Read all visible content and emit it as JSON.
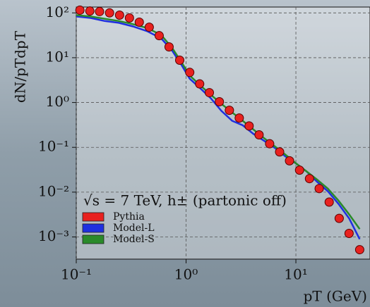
{
  "chart_data": {
    "type": "line",
    "x_label": "pT (GeV)",
    "y_label": "dN/pTdpT",
    "annotation": "√s = 7 TeV, h± (partonic off)",
    "log_x": true,
    "log_y": true,
    "grid": true,
    "legend": "lower left",
    "xlim": [
      0.1,
      47.3
    ],
    "ylim": [
      0.00032,
      135
    ],
    "xticks": [
      {
        "value": 0.1,
        "label": "10⁻¹"
      },
      {
        "value": 1,
        "label": "10⁰"
      },
      {
        "value": 10,
        "label": "10¹"
      }
    ],
    "yticks": [
      {
        "value": 0.001,
        "label": "10⁻³"
      },
      {
        "value": 0.01,
        "label": "10⁻²"
      },
      {
        "value": 0.1,
        "label": "10⁻¹"
      },
      {
        "value": 1,
        "label": "10⁰"
      },
      {
        "value": 10,
        "label": "10¹"
      },
      {
        "value": 100,
        "label": "10²"
      }
    ],
    "series": [
      {
        "name": "Pythia",
        "color": "#e8211f",
        "style": "markers",
        "x": [
          0.108,
          0.133,
          0.163,
          0.201,
          0.248,
          0.305,
          0.375,
          0.462,
          0.569,
          0.7,
          0.875,
          1.08,
          1.33,
          1.63,
          2.01,
          2.48,
          3.05,
          3.75,
          4.62,
          5.77,
          7.11,
          8.75,
          10.8,
          13.3,
          16.3,
          20.1,
          24.8,
          30.5,
          38.1
        ],
        "values": [
          115,
          110,
          107,
          100,
          89,
          77,
          62,
          48,
          31,
          17.4,
          8.8,
          4.7,
          2.6,
          1.66,
          1.04,
          0.67,
          0.45,
          0.3,
          0.19,
          0.12,
          0.079,
          0.05,
          0.031,
          0.02,
          0.012,
          0.006,
          0.0026,
          0.0012,
          0.00052
        ]
      },
      {
        "name": "Model-L",
        "color": "#1f2fe0",
        "style": "line",
        "x": [
          0.1,
          0.135,
          0.181,
          0.244,
          0.328,
          0.442,
          0.594,
          0.743,
          0.901,
          1.08,
          1.35,
          1.68,
          2.1,
          2.63,
          3.28,
          4.1,
          5.13,
          6.4,
          8.0,
          10.0,
          12.5,
          15.6,
          19.5,
          24.4,
          30.5,
          38.1
        ],
        "values": [
          83,
          77,
          66,
          60,
          50,
          39,
          27,
          14.6,
          7.1,
          3.4,
          2.06,
          1.24,
          0.65,
          0.39,
          0.31,
          0.2,
          0.14,
          0.098,
          0.063,
          0.044,
          0.029,
          0.017,
          0.0105,
          0.0055,
          0.0026,
          0.00089
        ]
      },
      {
        "name": "Model-S",
        "color": "#2a8a2a",
        "style": "line",
        "x": [
          0.1,
          0.135,
          0.181,
          0.244,
          0.328,
          0.442,
          0.594,
          0.743,
          0.901,
          1.08,
          1.35,
          1.68,
          2.1,
          2.63,
          3.28,
          4.1,
          5.13,
          6.4,
          8.0,
          10.0,
          12.5,
          15.6,
          19.5,
          24.4,
          30.5,
          38.1
        ],
        "values": [
          89,
          83,
          74,
          66,
          56,
          46,
          32,
          16.8,
          8.2,
          4.0,
          2.4,
          1.49,
          0.93,
          0.6,
          0.39,
          0.25,
          0.16,
          0.106,
          0.069,
          0.044,
          0.029,
          0.019,
          0.012,
          0.0065,
          0.0032,
          0.0015
        ]
      }
    ]
  }
}
